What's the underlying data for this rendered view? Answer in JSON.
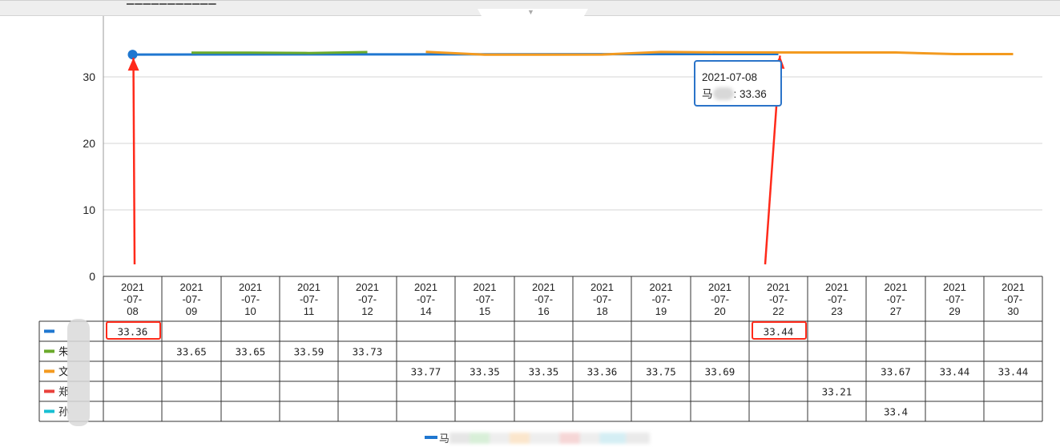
{
  "window": {
    "topbar_title": "▁▁▁▁▁▁▁▁▁▁▁",
    "collapse_icon": "chevron-down-icon"
  },
  "tooltip": {
    "date": "2021-07-08",
    "series_prefix": "马",
    "value_text": ": 33.36"
  },
  "legend": {
    "first_label": "马"
  },
  "colors": {
    "blue": "#1f77d0",
    "green": "#6aaa2b",
    "orange": "#f39a1f",
    "red": "#e9413b",
    "cyan": "#17bfd3",
    "annotation_red": "#ff2a1a"
  },
  "chart_data": {
    "type": "line",
    "ylim": [
      0,
      38
    ],
    "yticks": [
      0,
      10,
      20,
      30
    ],
    "grid": true,
    "categories": [
      [
        "2021",
        "-07-",
        "08"
      ],
      [
        "2021",
        "-07-",
        "09"
      ],
      [
        "2021",
        "-07-",
        "10"
      ],
      [
        "2021",
        "-07-",
        "11"
      ],
      [
        "2021",
        "-07-",
        "12"
      ],
      [
        "2021",
        "-07-",
        "14"
      ],
      [
        "2021",
        "-07-",
        "15"
      ],
      [
        "2021",
        "-07-",
        "16"
      ],
      [
        "2021",
        "-07-",
        "18"
      ],
      [
        "2021",
        "-07-",
        "19"
      ],
      [
        "2021",
        "-07-",
        "20"
      ],
      [
        "2021",
        "-07-",
        "22"
      ],
      [
        "2021",
        "-07-",
        "23"
      ],
      [
        "2021",
        "-07-",
        "27"
      ],
      [
        "2021",
        "-07-",
        "29"
      ],
      [
        "2021",
        "-07-",
        "30"
      ]
    ],
    "series": [
      {
        "name": "",
        "label_visible": "",
        "color": "#1f77d0",
        "values": [
          33.36,
          null,
          null,
          null,
          null,
          null,
          null,
          null,
          null,
          null,
          null,
          33.44,
          null,
          null,
          null,
          null
        ]
      },
      {
        "name": "朱",
        "label_visible": "朱",
        "color": "#6aaa2b",
        "values": [
          null,
          33.65,
          33.65,
          33.59,
          33.73,
          null,
          null,
          null,
          null,
          null,
          null,
          null,
          null,
          null,
          null,
          null
        ]
      },
      {
        "name": "文",
        "label_visible": "文",
        "color": "#f39a1f",
        "values": [
          null,
          null,
          null,
          null,
          null,
          33.77,
          33.35,
          33.35,
          33.36,
          33.75,
          33.69,
          null,
          null,
          33.67,
          33.44,
          33.44
        ]
      },
      {
        "name": "郑",
        "label_visible": "郑",
        "color": "#e9413b",
        "values": [
          null,
          null,
          null,
          null,
          null,
          null,
          null,
          null,
          null,
          null,
          null,
          null,
          33.21,
          null,
          null,
          null
        ]
      },
      {
        "name": "孙",
        "label_visible": "孙",
        "color": "#17bfd3",
        "values": [
          null,
          null,
          null,
          null,
          null,
          null,
          null,
          null,
          null,
          null,
          null,
          null,
          null,
          33.4,
          null,
          null
        ]
      }
    ],
    "cell_text": [
      [
        "33.36",
        "",
        "",
        "",
        "",
        "",
        "",
        "",
        "",
        "",
        "",
        "33.44",
        "",
        "",
        "",
        ""
      ],
      [
        "",
        "33.65",
        "33.65",
        "33.59",
        "33.73",
        "",
        "",
        "",
        "",
        "",
        "",
        "",
        "",
        "",
        "",
        ""
      ],
      [
        "",
        "",
        "",
        "",
        "",
        "33.77",
        "33.35",
        "33.35",
        "33.36",
        "33.75",
        "33.69",
        "",
        "",
        "33.67",
        "33.44",
        "33.44"
      ],
      [
        "",
        "",
        "",
        "",
        "",
        "",
        "",
        "",
        "",
        "",
        "",
        "",
        "33.21",
        "",
        "",
        ""
      ],
      [
        "",
        "",
        "",
        "",
        "",
        "",
        "",
        "",
        "",
        "",
        "",
        "",
        "",
        "33.4",
        "",
        ""
      ]
    ],
    "highlighted_cells": [
      [
        0,
        0
      ],
      [
        0,
        11
      ]
    ],
    "tooltip_point": [
      0,
      0
    ]
  }
}
